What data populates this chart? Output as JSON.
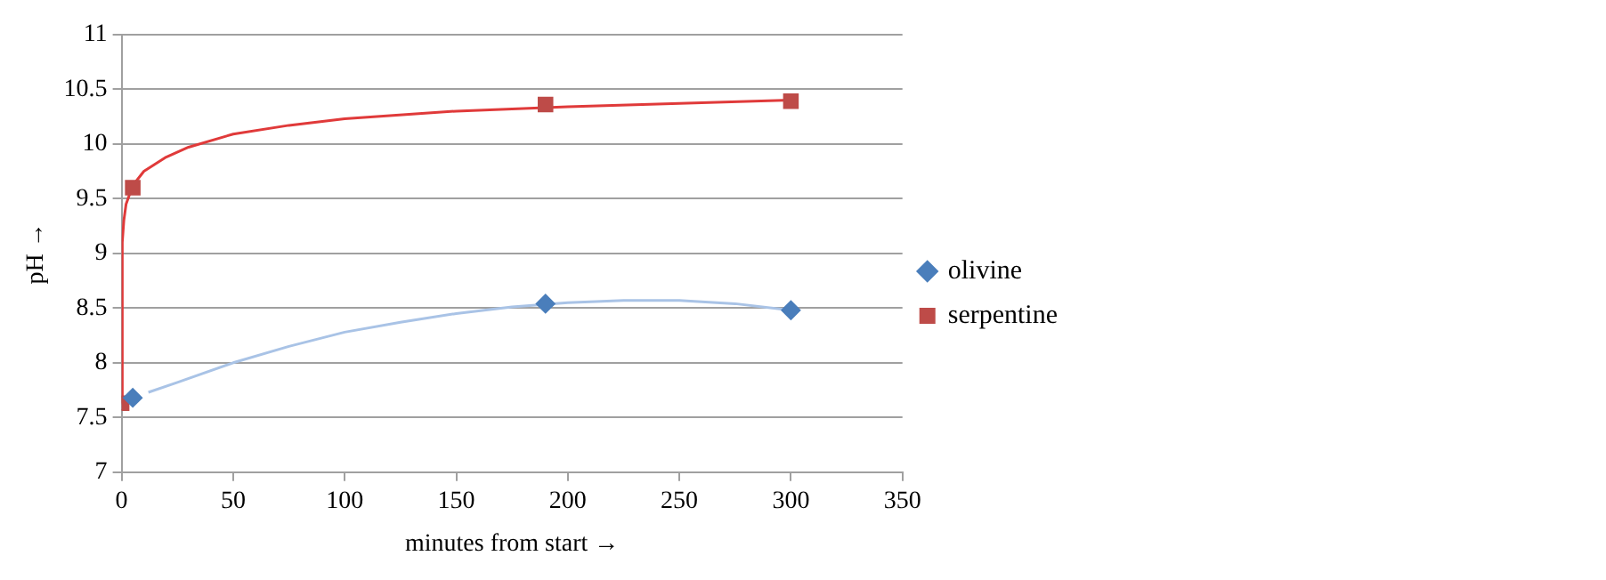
{
  "chart_data": {
    "type": "scatter",
    "xlabel": "minutes from start →",
    "ylabel": "pH →",
    "xlim": [
      0,
      350
    ],
    "xticks": [
      0,
      50,
      100,
      150,
      200,
      250,
      300,
      350
    ],
    "ylim": [
      7,
      11
    ],
    "yticks": [
      7,
      7.5,
      8,
      8.5,
      9,
      9.5,
      10,
      10.5,
      11
    ],
    "grid": "y",
    "legend": "right",
    "series": [
      {
        "name": "olivine",
        "type": "scatter",
        "marker": "diamond",
        "color": "#4a7ebb",
        "x": [
          5,
          190,
          300
        ],
        "values": [
          7.68,
          8.54,
          8.48
        ]
      },
      {
        "name": "serpentine",
        "type": "scatter",
        "marker": "square",
        "color": "#be4b48",
        "x": [
          0,
          5,
          190,
          300
        ],
        "values": [
          7.63,
          9.6,
          10.36,
          10.39
        ]
      },
      {
        "type": "line",
        "marker": "none",
        "color": "#a9c3e6",
        "x": [
          12,
          25,
          50,
          75,
          100,
          125,
          150,
          175,
          200,
          225,
          250,
          275,
          300
        ],
        "values": [
          7.73,
          7.82,
          8.0,
          8.15,
          8.28,
          8.37,
          8.45,
          8.51,
          8.55,
          8.57,
          8.57,
          8.54,
          8.48
        ]
      },
      {
        "type": "line",
        "marker": "none",
        "color": "#e03a3a",
        "x": [
          0,
          0.3,
          1,
          2,
          5,
          10,
          20,
          30,
          50,
          75,
          100,
          150,
          200,
          250,
          300
        ],
        "values": [
          7.63,
          9.1,
          9.3,
          9.45,
          9.62,
          9.75,
          9.88,
          9.97,
          10.09,
          10.17,
          10.23,
          10.3,
          10.34,
          10.37,
          10.4
        ]
      }
    ]
  }
}
